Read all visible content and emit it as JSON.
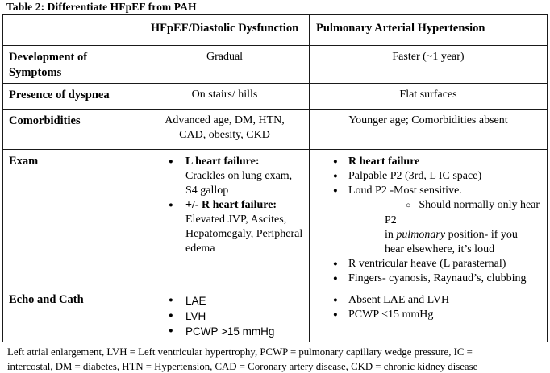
{
  "title": "Table 2: Differentiate HFpEF from PAH",
  "table": {
    "headers": {
      "hfpef": "HFpEF/Diastolic Dysfunction",
      "pah": "Pulmonary Arterial Hypertension"
    },
    "rows": {
      "development": {
        "label": "Development of Symptoms",
        "hfpef": "Gradual",
        "pah": "Faster (~1 year)"
      },
      "dyspnea": {
        "label": "Presence of dyspnea",
        "hfpef": "On stairs/ hills",
        "pah": "Flat surfaces"
      },
      "comorbidities": {
        "label": "Comorbidities",
        "hfpef": "Advanced age, DM, HTN, CAD, obesity, CKD",
        "pah": "Younger age; Comorbidities absent"
      },
      "exam": {
        "label": "Exam",
        "hfpef_list": [
          {
            "segments": [
              {
                "text": "L heart failure:",
                "bold": true
              },
              {
                "text": "Crackles on lung exam, S4 gallop",
                "break": true
              }
            ]
          },
          {
            "segments": [
              {
                "text": "+/- R heart failure:",
                "bold": true
              },
              {
                "text": "Elevated JVP, Ascites, Hepatomegaly, Peripheral edema",
                "break": true
              }
            ]
          }
        ],
        "pah_list": [
          {
            "segments": [
              {
                "text": "R heart failure",
                "bold": true
              }
            ]
          },
          {
            "segments": [
              {
                "text": "Palpable P2 (3rd, L IC space)"
              }
            ]
          },
          {
            "segments": [
              {
                "text": "Loud P2 -Most sensitive."
              }
            ],
            "sub": [
              {
                "segments": [
                  {
                    "text": "Should normally only hear P2"
                  },
                  {
                    "text": "in ",
                    "break": true
                  },
                  {
                    "text": "pulmonary",
                    "italic": true
                  },
                  {
                    "text": " position- if you"
                  },
                  {
                    "text": "hear elsewhere, it’s loud",
                    "break": true
                  }
                ]
              }
            ]
          },
          {
            "segments": [
              {
                "text": "R ventricular heave (L parasternal)"
              }
            ]
          },
          {
            "segments": [
              {
                "text": "Fingers- cyanosis, Raynaud’s, clubbing"
              }
            ]
          }
        ]
      },
      "echo": {
        "label": "Echo and Cath",
        "hfpef_list": [
          {
            "segments": [
              {
                "text": "LAE"
              }
            ]
          },
          {
            "segments": [
              {
                "text": "LVH"
              }
            ]
          },
          {
            "segments": [
              {
                "text": "PCWP >15 mmHg"
              }
            ]
          }
        ],
        "pah_list": [
          {
            "segments": [
              {
                "text": "Absent LAE and LVH"
              }
            ]
          },
          {
            "segments": [
              {
                "text": "PCWP <15 mmHg"
              }
            ]
          }
        ]
      }
    }
  },
  "footnote": {
    "lines": [
      "Left atrial enlargement, LVH = Left ventricular hypertrophy, PCWP = pulmonary capillary wedge pressure, IC =",
      "intercostal, DM = diabetes, HTN = Hypertension, CAD = Coronary artery disease, CKD = chronic kidney disease"
    ]
  }
}
